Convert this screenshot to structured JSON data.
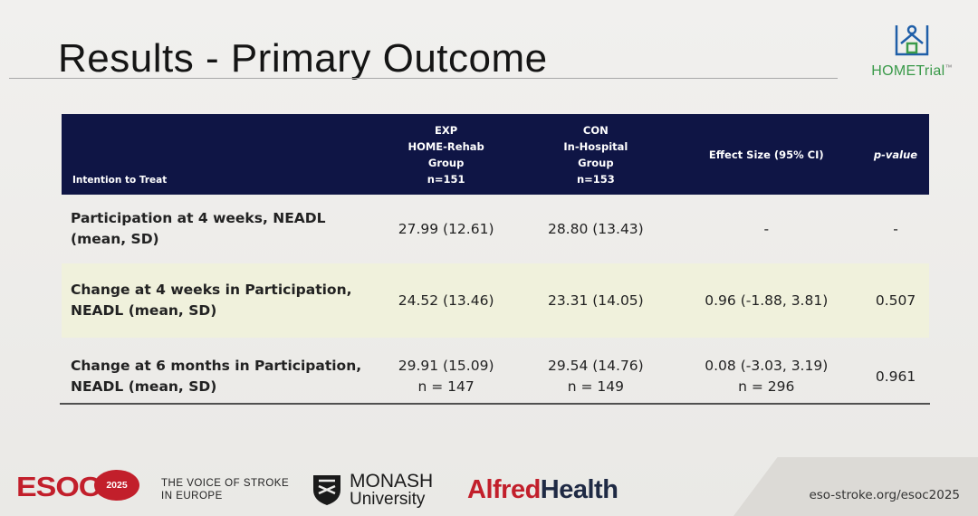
{
  "slide": {
    "title": "Results - Primary Outcome",
    "logo_text": "HOMETrial",
    "logo_tm": "™"
  },
  "table": {
    "headers": {
      "col0": "Intention to Treat",
      "col1": [
        "EXP",
        "HOME-Rehab",
        "Group",
        "n=151"
      ],
      "col2": [
        "CON",
        "In-Hospital",
        "Group",
        "n=153"
      ],
      "col3": "Effect Size (95% CI)",
      "col4": "p-value"
    },
    "rows": [
      {
        "label": [
          "Participation at 4 weeks, NEADL",
          "(mean, SD)"
        ],
        "exp": [
          "27.99 (12.61)"
        ],
        "con": [
          "28.80 (13.43)"
        ],
        "effect": [
          "-"
        ],
        "p": "-"
      },
      {
        "label": [
          "Change at 4 weeks in Participation,",
          "NEADL (mean, SD)"
        ],
        "exp": [
          "24.52 (13.46)"
        ],
        "con": [
          "23.31 (14.05)"
        ],
        "effect": [
          "0.96 (-1.88, 3.81)"
        ],
        "p": "0.507"
      },
      {
        "label": [
          "Change at 6 months in Participation,",
          "NEADL (mean, SD)"
        ],
        "exp": [
          "29.91 (15.09)",
          "n = 147"
        ],
        "con": [
          "29.54 (14.76)",
          "n = 149"
        ],
        "effect": [
          "0.08 (-3.03, 3.19)",
          "n = 296"
        ],
        "p": "0.961"
      }
    ]
  },
  "footer": {
    "esoc": "ESOC",
    "year": "2025",
    "tagline": [
      "THE VOICE OF STROKE",
      "IN EUROPE"
    ],
    "monash": [
      "MONASH",
      "University"
    ],
    "alfred_a": "Alfred",
    "alfred_h": "Health",
    "url": "eso-stroke.org/esoc2025"
  },
  "colors": {
    "header_navy": "#0f1545",
    "highlight_row": "#f0f1dc",
    "brand_red": "#c21f2b",
    "home_green": "#3a9a4a"
  }
}
